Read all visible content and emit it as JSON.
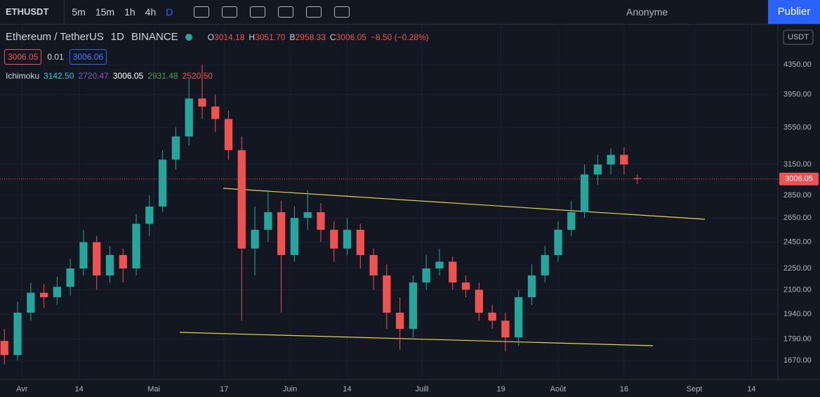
{
  "toolbar": {
    "symbol": "ETHUSDT",
    "intervals": [
      "5m",
      "15m",
      "1h",
      "4h",
      "D"
    ],
    "account": "Anonyme",
    "publish": "Publier"
  },
  "legend": {
    "name": "Ethereum / TetherUS",
    "interval": "1D",
    "exchange": "BINANCE",
    "ohlc": [
      {
        "label": "O",
        "value": "3014.18"
      },
      {
        "label": "H",
        "value": "3051.70"
      },
      {
        "label": "B",
        "value": "2958.33"
      },
      {
        "label": "C",
        "value": "3006.05"
      }
    ],
    "change": "−8.50 (−0.28%)",
    "bid": "3006.05",
    "spread": "0.01",
    "ask": "3006.06",
    "indicator": "Ichimoku",
    "indicator_values": [
      "3142.50",
      "2720.47",
      "3006.05",
      "2931.48",
      "2520.50"
    ]
  },
  "chart_data": {
    "type": "candlestick",
    "currency": "USDT",
    "log_scale": true,
    "grid": true,
    "up_color": "#26a69a",
    "down_color": "#ef5350",
    "x": [
      "03-28",
      "03-31",
      "04-03",
      "04-06",
      "04-09",
      "04-12",
      "04-15",
      "04-18",
      "04-21",
      "04-24",
      "04-27",
      "04-30",
      "05-03",
      "05-06",
      "05-09",
      "05-12",
      "05-15",
      "05-18",
      "05-21",
      "05-24",
      "05-27",
      "05-30",
      "06-02",
      "06-05",
      "06-08",
      "06-11",
      "06-14",
      "06-17",
      "06-20",
      "06-23",
      "06-26",
      "06-29",
      "07-02",
      "07-05",
      "07-08",
      "07-11",
      "07-14",
      "07-17",
      "07-20",
      "07-23",
      "07-26",
      "07-29",
      "08-01",
      "08-04",
      "08-07",
      "08-10",
      "08-13",
      "08-16",
      "08-19"
    ],
    "open": [
      1780,
      1700,
      1950,
      2080,
      2050,
      2120,
      2250,
      2450,
      2200,
      2350,
      2250,
      2600,
      2750,
      3200,
      3450,
      3900,
      3800,
      3650,
      3300,
      2400,
      2550,
      2700,
      2350,
      2650,
      2700,
      2550,
      2400,
      2550,
      2350,
      2200,
      1950,
      1850,
      2150,
      2250,
      2300,
      2150,
      2100,
      1950,
      1900,
      1800,
      2050,
      2200,
      2350,
      2550,
      2700,
      3050,
      3150,
      3250,
      3014.18
    ],
    "high": [
      1850,
      2020,
      2150,
      2140,
      2190,
      2320,
      2550,
      2500,
      2420,
      2400,
      2680,
      2850,
      3300,
      3550,
      4150,
      4350,
      3950,
      3750,
      3450,
      2750,
      2900,
      2800,
      2750,
      2900,
      2780,
      2620,
      2650,
      2600,
      2400,
      2280,
      2050,
      2200,
      2350,
      2400,
      2340,
      2200,
      2150,
      2000,
      1950,
      2100,
      2280,
      2420,
      2620,
      2800,
      3150,
      3250,
      3320,
      3330,
      3051.7
    ],
    "low": [
      1650,
      1670,
      1900,
      1980,
      2000,
      2060,
      2200,
      2100,
      2150,
      2150,
      2200,
      2500,
      2700,
      3100,
      3350,
      3650,
      3500,
      3200,
      1900,
      2200,
      2450,
      1950,
      2300,
      2550,
      2450,
      2300,
      2350,
      2250,
      2100,
      1850,
      1730,
      1800,
      2100,
      2200,
      2100,
      2050,
      1900,
      1850,
      1720,
      1750,
      2000,
      2150,
      2300,
      2500,
      2650,
      2950,
      3050,
      3050,
      2958.33
    ],
    "close": [
      1700,
      1950,
      2080,
      2050,
      2120,
      2250,
      2450,
      2200,
      2350,
      2250,
      2600,
      2750,
      3200,
      3450,
      3900,
      3800,
      3650,
      3300,
      2400,
      2550,
      2700,
      2350,
      2650,
      2700,
      2550,
      2400,
      2550,
      2350,
      2200,
      1950,
      1850,
      2150,
      2250,
      2300,
      2150,
      2100,
      1950,
      1900,
      1800,
      2050,
      2200,
      2350,
      2550,
      2700,
      3050,
      3150,
      3250,
      3150,
      3006.05
    ],
    "xlim": [
      "03-27",
      "09-20"
    ],
    "xticks": [
      {
        "value": "04-01",
        "label": "Avr"
      },
      {
        "value": "04-14",
        "label": "14"
      },
      {
        "value": "05-01",
        "label": "Mai"
      },
      {
        "value": "05-17",
        "label": "17"
      },
      {
        "value": "06-01",
        "label": "Juin"
      },
      {
        "value": "06-14",
        "label": "14"
      },
      {
        "value": "07-01",
        "label": "Juill"
      },
      {
        "value": "07-19",
        "label": "19"
      },
      {
        "value": "08-01",
        "label": "Août"
      },
      {
        "value": "08-16",
        "label": "16"
      },
      {
        "value": "09-01",
        "label": "Sept"
      },
      {
        "value": "09-14",
        "label": "14"
      }
    ],
    "ylim": [
      1571,
      4955
    ],
    "yticks": [
      {
        "value": 4350,
        "label": "4350.00"
      },
      {
        "value": 3950,
        "label": "3950.00"
      },
      {
        "value": 3550,
        "label": "3550.00"
      },
      {
        "value": 3150,
        "label": "3150.00"
      },
      {
        "value": 2850,
        "label": "2850.00"
      },
      {
        "value": 2650,
        "label": "2650.00"
      },
      {
        "value": 2450,
        "label": "2450.00"
      },
      {
        "value": 2250,
        "label": "2250.00"
      },
      {
        "value": 2100,
        "label": "2100.00"
      },
      {
        "value": 1940,
        "label": "1940.00"
      },
      {
        "value": 1790,
        "label": "1790.00"
      },
      {
        "value": 1670,
        "label": "1670.00"
      }
    ]
  }
}
